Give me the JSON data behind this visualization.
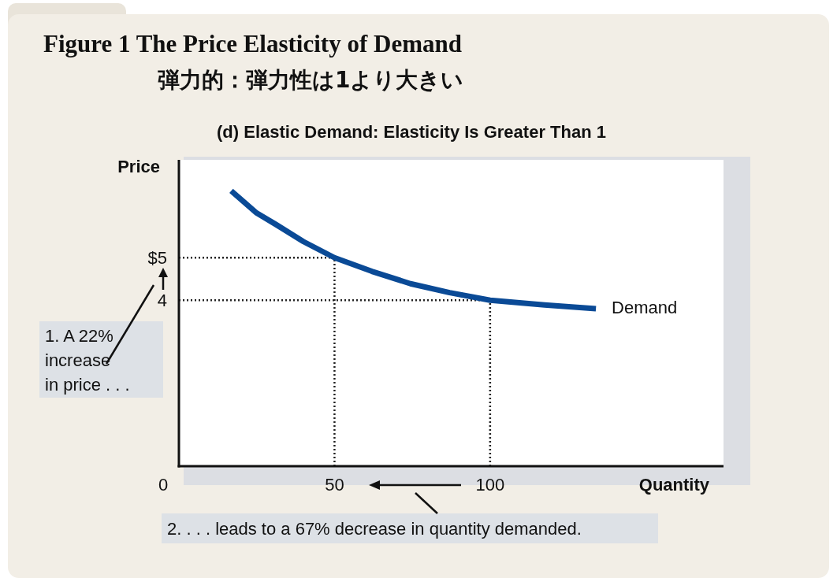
{
  "chart_data": {
    "type": "line",
    "title": "Figure 1 The Price Elasticity of Demand",
    "subtitle": "弾力的：弾力性は1より大きい",
    "xlabel": "Quantity",
    "ylabel": "Price",
    "xlim": [
      0,
      175
    ],
    "ylim": [
      0.1,
      7.3
    ],
    "xticks": [
      0,
      50,
      100
    ],
    "yticks": [
      4,
      {
        "value": 5,
        "label": "$5"
      }
    ],
    "series": [
      {
        "name": "Demand",
        "color": "#0a4a96",
        "x": [
          16.8,
          25,
          31.2,
          40,
          50,
          62,
          74.4,
          87,
          100,
          117.5,
          134
        ],
        "values": [
          6.57,
          6.05,
          5.78,
          5.38,
          5,
          4.68,
          4.39,
          4.18,
          4,
          3.89,
          3.8
        ]
      }
    ],
    "ref_lines": [
      {
        "axis": "y",
        "value": 5,
        "line_style": "dotted",
        "color": "#222222"
      },
      {
        "axis": "y",
        "value": 4,
        "line_style": "dotted",
        "color": "#222222"
      },
      {
        "axis": "x",
        "value": 50,
        "line_style": "dotted",
        "color": "#222222"
      },
      {
        "axis": "x",
        "value": 100,
        "line_style": "dotted",
        "color": "#222222"
      }
    ],
    "annotations": [
      "(d) Elastic Demand: Elasticity Is Greater Than 1",
      "1. A 22% increase in price . . .",
      "2. . . . leads to a 67% decrease in quantity demanded."
    ],
    "grid": false,
    "marker": "none",
    "line_style": "solid"
  }
}
